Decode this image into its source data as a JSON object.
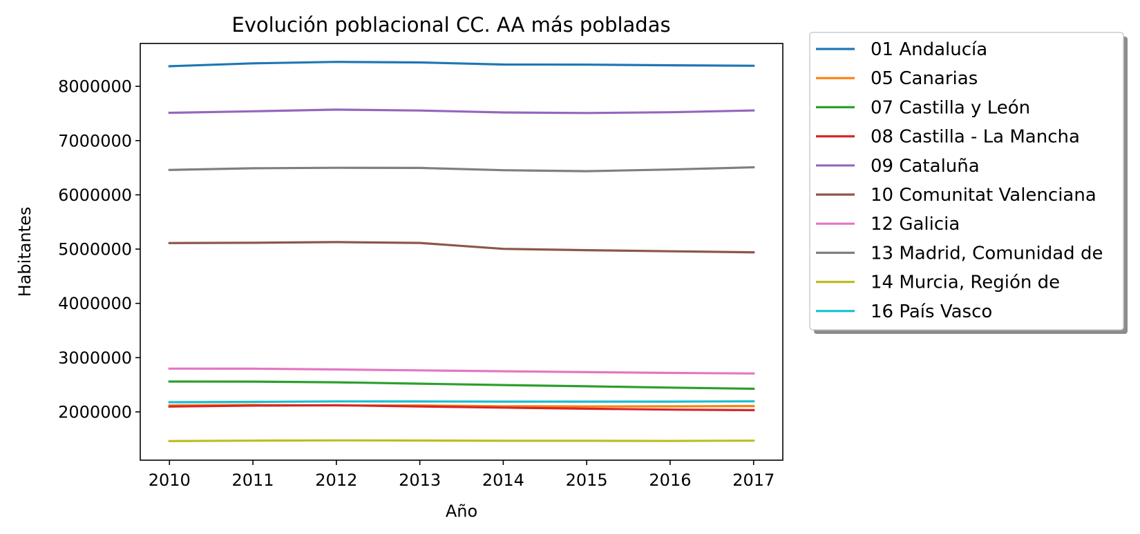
{
  "chart_data": {
    "type": "line",
    "title": "Evolución poblacional CC. AA más pobladas",
    "xlabel": "Año",
    "ylabel": "Habitantes",
    "x": [
      2010,
      2011,
      2012,
      2013,
      2014,
      2015,
      2016,
      2017
    ],
    "x_tick_labels": [
      "2010",
      "2011",
      "2012",
      "2013",
      "2014",
      "2015",
      "2016",
      "2017"
    ],
    "y_ticks": [
      2000000,
      3000000,
      4000000,
      5000000,
      6000000,
      7000000,
      8000000
    ],
    "y_tick_labels": [
      "2000000",
      "3000000",
      "4000000",
      "5000000",
      "6000000",
      "7000000",
      "8000000"
    ],
    "xlim": [
      2009.65,
      2017.35
    ],
    "ylim": [
      1110000,
      8790000
    ],
    "grid": false,
    "legend_position": "outside-top-right",
    "series": [
      {
        "name": "01 Andalucía",
        "color": "#1f77b4",
        "values": [
          8370975,
          8424102,
          8449985,
          8440300,
          8402305,
          8399043,
          8388107,
          8379820
        ]
      },
      {
        "name": "05 Canarias",
        "color": "#ff7f0e",
        "values": [
          2118519,
          2126769,
          2118344,
          2118679,
          2104815,
          2100306,
          2101924,
          2108121
        ]
      },
      {
        "name": "07 Castilla y León",
        "color": "#2ca02c",
        "values": [
          2559515,
          2558463,
          2546078,
          2519875,
          2494790,
          2472052,
          2447519,
          2425801
        ]
      },
      {
        "name": "08 Castilla - La Mancha",
        "color": "#d62728",
        "values": [
          2098373,
          2115334,
          2121888,
          2100998,
          2078611,
          2059191,
          2041631,
          2031479
        ]
      },
      {
        "name": "09 Cataluña",
        "color": "#9467bd",
        "values": [
          7512381,
          7539618,
          7570908,
          7553650,
          7518903,
          7508106,
          7522596,
          7555830
        ]
      },
      {
        "name": "10 Comunitat Valenciana",
        "color": "#8c564b",
        "values": [
          5111706,
          5117190,
          5129266,
          5113815,
          5004844,
          4980689,
          4959968,
          4941509
        ]
      },
      {
        "name": "12 Galicia",
        "color": "#e377c2",
        "values": [
          2797653,
          2795422,
          2781498,
          2765940,
          2748695,
          2732347,
          2718525,
          2708339
        ]
      },
      {
        "name": "13 Madrid, Comunidad de",
        "color": "#7f7f7f",
        "values": [
          6458684,
          6489680,
          6498560,
          6495551,
          6454440,
          6436996,
          6466996,
          6507184
        ]
      },
      {
        "name": "14 Murcia, Región de",
        "color": "#bcbd22",
        "values": [
          1461979,
          1470069,
          1474449,
          1472049,
          1466818,
          1467288,
          1464847,
          1470273
        ]
      },
      {
        "name": "16 País Vasco",
        "color": "#17becf",
        "values": [
          2178339,
          2184606,
          2193093,
          2191682,
          2188985,
          2189257,
          2189534,
          2194158
        ]
      }
    ]
  }
}
